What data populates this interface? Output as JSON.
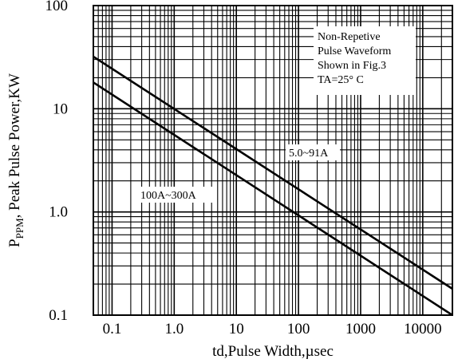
{
  "chart_data": {
    "type": "line",
    "title": "",
    "xlabel": "td,Pulse Width,µsec",
    "ylabel_main": "P",
    "ylabel_sub": "PPM",
    "ylabel_rest": ", Peak Pulse Power,KW",
    "x_scale": "log",
    "y_scale": "log",
    "xlim": [
      0.05,
      30000
    ],
    "ylim": [
      0.1,
      100
    ],
    "grid": true,
    "x_tick_labels": [
      "0.1",
      "1.0",
      "10",
      "100",
      "1000",
      "10000"
    ],
    "x_tick_values": [
      0.1,
      1,
      10,
      100,
      1000,
      10000
    ],
    "y_tick_labels": [
      "0.1",
      "1.0",
      "10",
      "100"
    ],
    "y_tick_values": [
      0.1,
      1,
      10,
      100
    ],
    "annotation_lines": [
      "Non-Repetive",
      "Pulse Waveform",
      "Shown in Fig.3",
      "TA=25°  C"
    ],
    "series": [
      {
        "name": "5.0~91A",
        "x": [
          0.05,
          30000
        ],
        "y": [
          32,
          0.18
        ],
        "color": "#000000"
      },
      {
        "name": "100A~300A",
        "x": [
          0.05,
          30000
        ],
        "y": [
          18,
          0.1
        ],
        "color": "#000000"
      }
    ]
  }
}
